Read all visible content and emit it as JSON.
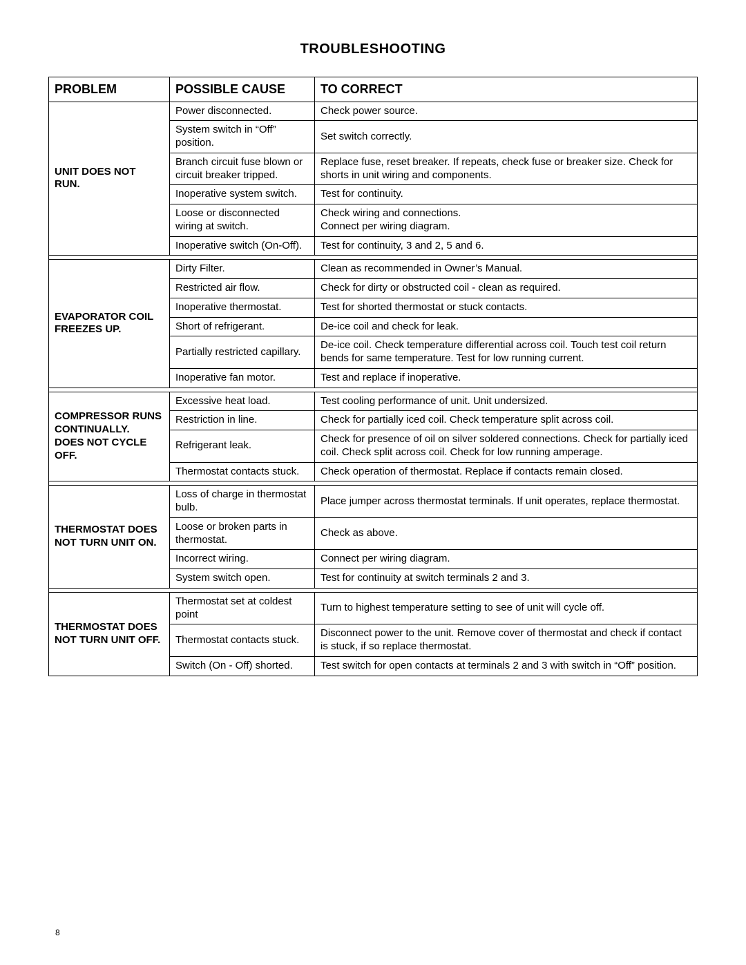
{
  "title": "TROUBLESHOOTING",
  "page_number": "8",
  "columns": {
    "problem": "PROBLEM",
    "cause": "POSSIBLE CAUSE",
    "correct": "TO CORRECT"
  },
  "sections": [
    {
      "problem": "UNIT DOES NOT RUN.",
      "rows": [
        {
          "cause": "Power disconnected.",
          "correct": "Check power source."
        },
        {
          "cause": "System switch in “Off” position.",
          "correct": "Set switch correctly."
        },
        {
          "cause": "Branch circuit fuse blown or circuit breaker tripped.",
          "correct": "Replace fuse, reset breaker. If repeats, check fuse or breaker size. Check for shorts in unit wiring and components."
        },
        {
          "cause": "Inoperative system switch.",
          "correct": "Test for continuity."
        },
        {
          "cause": "Loose or disconnected wiring at switch.",
          "correct": "Check wiring and connections.\nConnect per wiring diagram."
        },
        {
          "cause": "Inoperative switch (On-Off).",
          "correct": "Test for continuity, 3 and 2, 5 and 6."
        }
      ]
    },
    {
      "problem": "EVAPORATOR COIL FREEZES UP.",
      "rows": [
        {
          "cause": "Dirty Filter.",
          "correct": "Clean as recommended in Owner’s Manual."
        },
        {
          "cause": "Restricted air ﬂow.",
          "correct": "Check for dirty or obstructed coil - clean as required."
        },
        {
          "cause": "Inoperative thermostat.",
          "correct": "Test for shorted thermostat or stuck contacts."
        },
        {
          "cause": "Short of refrigerant.",
          "correct": "De-ice coil and check for leak."
        },
        {
          "cause": "Partially restricted capillary.",
          "correct": "De-ice coil. Check temperature differential across coil. Touch test coil return bends for same temperature. Test for low running current."
        },
        {
          "cause": "Inoperative fan motor.",
          "correct": "Test and replace if inoperative."
        }
      ]
    },
    {
      "problem": "COMPRESSOR RUNS CONTINUALLY.\nDOES NOT CYCLE OFF.",
      "rows": [
        {
          "cause": "Excessive heat load.",
          "correct": "Test cooling performance of unit. Unit undersized."
        },
        {
          "cause": "Restriction in line.",
          "correct": "Check for partially iced coil. Check temperature split across coil."
        },
        {
          "cause": "Refrigerant leak.",
          "correct": "Check for presence of oil on silver soldered connections. Check for partially iced coil. Check split across coil. Check for low running amperage."
        },
        {
          "cause": "Thermostat contacts stuck.",
          "correct": "Check operation of thermostat. Replace if contacts remain closed."
        }
      ]
    },
    {
      "problem": "THERMOSTAT DOES NOT TURN UNIT ON.",
      "rows": [
        {
          "cause": "Loss of charge in thermostat bulb.",
          "correct": "Place jumper across thermostat terminals. If unit operates, replace thermostat."
        },
        {
          "cause": "Loose or broken parts in thermostat.",
          "correct": "Check as above."
        },
        {
          "cause": "Incorrect wiring.",
          "correct": "Connect per wiring diagram."
        },
        {
          "cause": "System switch open.",
          "correct": "Test for continuity at switch terminals 2 and 3."
        }
      ]
    },
    {
      "problem": "THERMOSTAT DOES NOT TURN UNIT OFF.",
      "rows": [
        {
          "cause": "Thermostat set at coldest point",
          "correct": "Turn to highest temperature setting to see of unit will cycle off."
        },
        {
          "cause": "Thermostat contacts stuck.",
          "correct": "Disconnect power to the unit. Remove cover of thermostat and check if contact is stuck, if so replace thermostat."
        },
        {
          "cause": "Switch (On - Off) shorted.",
          "correct": "Test switch for open contacts at terminals 2 and 3 with switch in “Off” position."
        }
      ]
    }
  ]
}
